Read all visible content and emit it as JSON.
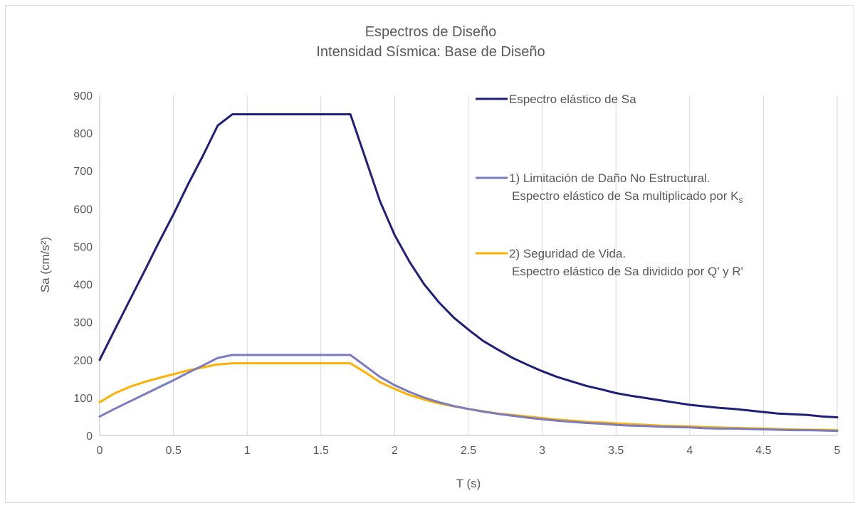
{
  "chart_data": {
    "type": "line",
    "title": "Espectros de Diseño",
    "subtitle": "Intensidad Sísmica: Base de Diseño",
    "xlabel": "T (s)",
    "ylabel": "Sa (cm/s²)",
    "xlim": [
      0,
      5
    ],
    "ylim": [
      0,
      900
    ],
    "x_ticks": [
      "0",
      "0.5",
      "1",
      "1.5",
      "2",
      "2.5",
      "3",
      "3.5",
      "4",
      "4.5",
      "5"
    ],
    "y_ticks": [
      "0",
      "100",
      "200",
      "300",
      "400",
      "500",
      "600",
      "700",
      "800",
      "900"
    ],
    "grid": "vertical",
    "legend_position": "right-inside",
    "x": [
      0,
      0.1,
      0.2,
      0.3,
      0.4,
      0.5,
      0.6,
      0.7,
      0.8,
      0.9,
      1.0,
      1.1,
      1.2,
      1.3,
      1.4,
      1.5,
      1.6,
      1.7,
      1.8,
      1.9,
      2.0,
      2.1,
      2.2,
      2.3,
      2.4,
      2.5,
      2.6,
      2.7,
      2.8,
      2.9,
      3.0,
      3.1,
      3.2,
      3.3,
      3.4,
      3.5,
      3.6,
      3.7,
      3.8,
      3.9,
      4.0,
      4.1,
      4.2,
      4.3,
      4.4,
      4.5,
      4.6,
      4.7,
      4.8,
      4.9,
      5.0
    ],
    "series": [
      {
        "name": "Espectro elástico de Sa",
        "color": "#1f1f7a",
        "values": [
          200,
          278,
          355,
          432,
          510,
          585,
          665,
          740,
          820,
          850,
          850,
          850,
          850,
          850,
          850,
          850,
          850,
          850,
          735,
          620,
          530,
          460,
          400,
          352,
          312,
          280,
          250,
          227,
          205,
          187,
          170,
          155,
          143,
          131,
          122,
          112,
          105,
          99,
          93,
          87,
          81,
          77,
          73,
          70,
          66,
          62,
          58,
          56,
          54,
          50,
          48
        ]
      },
      {
        "name": "1) Limitación de Daño No Estructural.",
        "name_line2": "Espectro elástico de Sa multiplicado por K",
        "name_subscript": "s",
        "color": "#7b7bbf",
        "values": [
          50,
          70,
          89,
          108,
          127,
          146,
          166,
          185,
          205,
          213,
          213,
          213,
          213,
          213,
          213,
          213,
          213,
          213,
          184,
          155,
          133,
          115,
          100,
          88,
          78,
          70,
          63,
          57,
          52,
          47,
          43,
          39,
          36,
          33,
          31,
          28,
          26,
          25,
          23,
          22,
          21,
          19,
          18,
          18,
          17,
          16,
          15,
          14,
          14,
          13,
          12
        ]
      },
      {
        "name": "2) Seguridad de Vida.",
        "name_line2": "Espectro elástico de Sa dividido por Q' y R'",
        "color": "#ffb000",
        "values": [
          88,
          111,
          128,
          141,
          152,
          162,
          172,
          180,
          188,
          191,
          191,
          191,
          191,
          191,
          191,
          191,
          191,
          191,
          167,
          141,
          123,
          107,
          95,
          85,
          77,
          70,
          64,
          58,
          54,
          50,
          46,
          42,
          39,
          36,
          34,
          32,
          30,
          28,
          26,
          25,
          24,
          22,
          21,
          20,
          19,
          18,
          17,
          16,
          15,
          15,
          14
        ]
      }
    ]
  }
}
